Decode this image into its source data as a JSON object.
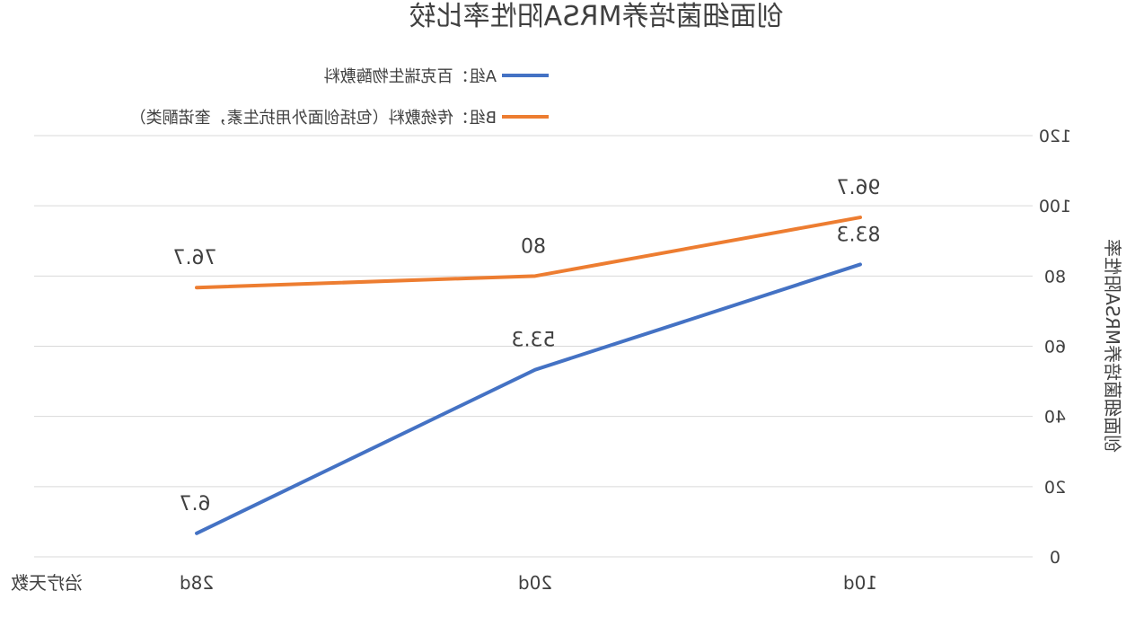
{
  "chart_data": {
    "type": "line",
    "title": "创面细菌培养MRSA阳性率比较",
    "xlabel": "治疗天数",
    "ylabel": "创面细菌培养MRSA阳性率",
    "categories": [
      "10d",
      "20d",
      "28d"
    ],
    "ylim": [
      0,
      120
    ],
    "yticks": [
      0,
      20,
      40,
      60,
      80,
      100,
      120
    ],
    "ytick_labels": [
      "0",
      "20",
      "40",
      "60",
      "80",
      "100",
      "120"
    ],
    "grid": true,
    "legend_position": "top",
    "mirrored_horizontally": true,
    "series": [
      {
        "name": "A组：百克瑞生物酶敷料",
        "color": "#4472C4",
        "values": [
          83.3,
          53.3,
          6.7
        ],
        "labels": [
          "83.3",
          "53.3",
          "6.7"
        ]
      },
      {
        "name": "B组：传统敷料（包括创面外用抗生素，奎诺酮类）",
        "color": "#ED7D31",
        "values": [
          96.7,
          80,
          76.7
        ],
        "labels": [
          "96.7",
          "80",
          "76.7"
        ]
      }
    ]
  }
}
